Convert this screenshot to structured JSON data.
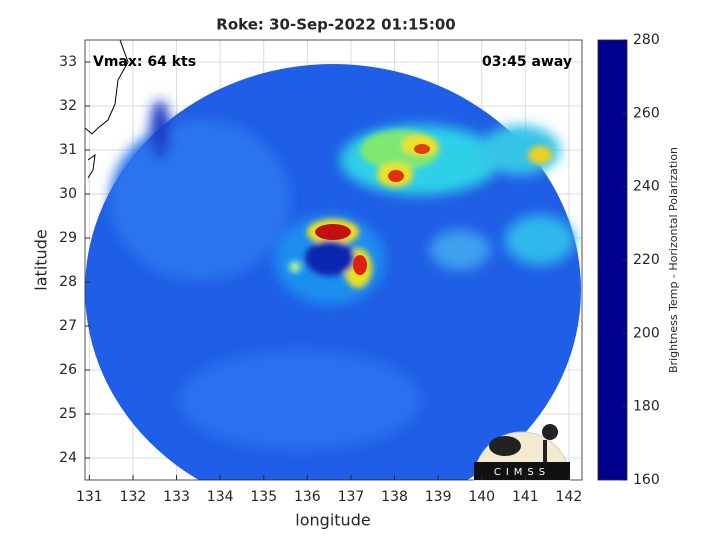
{
  "chart_data": {
    "type": "image-map",
    "title": "Roke: 30-Sep-2022 01:15:00",
    "annotations": [
      "Vmax: 64 kts",
      "03:45 away"
    ],
    "xlabel": "longitude",
    "ylabel": "latitude",
    "xlim": [
      130.9,
      142.3
    ],
    "xticks": [
      131,
      132,
      133,
      134,
      135,
      136,
      137,
      138,
      139,
      140,
      141,
      142
    ],
    "ylim": [
      23.5,
      33.5
    ],
    "yticks": [
      24,
      25,
      26,
      27,
      28,
      29,
      30,
      31,
      32,
      33
    ],
    "grid": true,
    "colorbar": {
      "label": "Brightness Temp - Horizontal Polarization",
      "colormap": "jet",
      "clim": [
        160,
        280
      ],
      "ticks": [
        160,
        180,
        200,
        220,
        240,
        260,
        280
      ]
    },
    "logo": "CIMSS"
  }
}
